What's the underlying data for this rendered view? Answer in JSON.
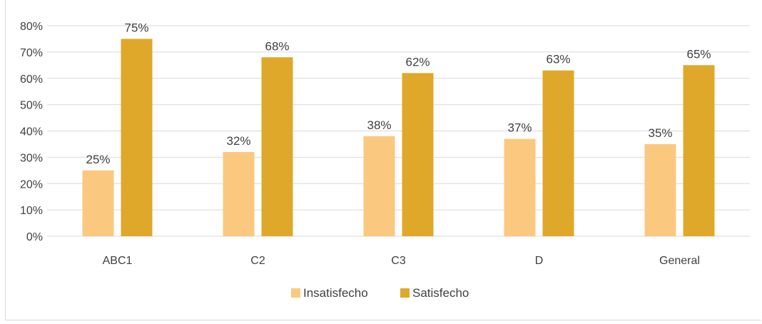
{
  "chart_data": {
    "type": "bar",
    "title": "",
    "xlabel": "",
    "ylabel": "",
    "categories": [
      "ABC1",
      "C2",
      "C3",
      "D",
      "General"
    ],
    "series": [
      {
        "name": "Insatisfecho",
        "values": [
          25,
          32,
          38,
          37,
          35
        ],
        "labels": [
          "25%",
          "32%",
          "38%",
          "37%",
          "35%"
        ]
      },
      {
        "name": "Satisfecho",
        "values": [
          75,
          68,
          62,
          63,
          65
        ],
        "labels": [
          "75%",
          "68%",
          "62%",
          "63%",
          "65%"
        ]
      }
    ],
    "ylim": [
      0,
      80
    ],
    "yticks": [
      {
        "value": 0,
        "label": "0%"
      },
      {
        "value": 10,
        "label": "10%"
      },
      {
        "value": 20,
        "label": "20%"
      },
      {
        "value": 30,
        "label": "30%"
      },
      {
        "value": 40,
        "label": "40%"
      },
      {
        "value": 50,
        "label": "50%"
      },
      {
        "value": 60,
        "label": "60%"
      },
      {
        "value": 70,
        "label": "70%"
      },
      {
        "value": 80,
        "label": "80%"
      }
    ],
    "grid": true,
    "legend_position": "bottom",
    "colors": {
      "Insatisfecho": "#FAC97F",
      "Satisfecho": "#DFA82A",
      "gridline": "#d9d9d9",
      "text": "#404040"
    }
  }
}
